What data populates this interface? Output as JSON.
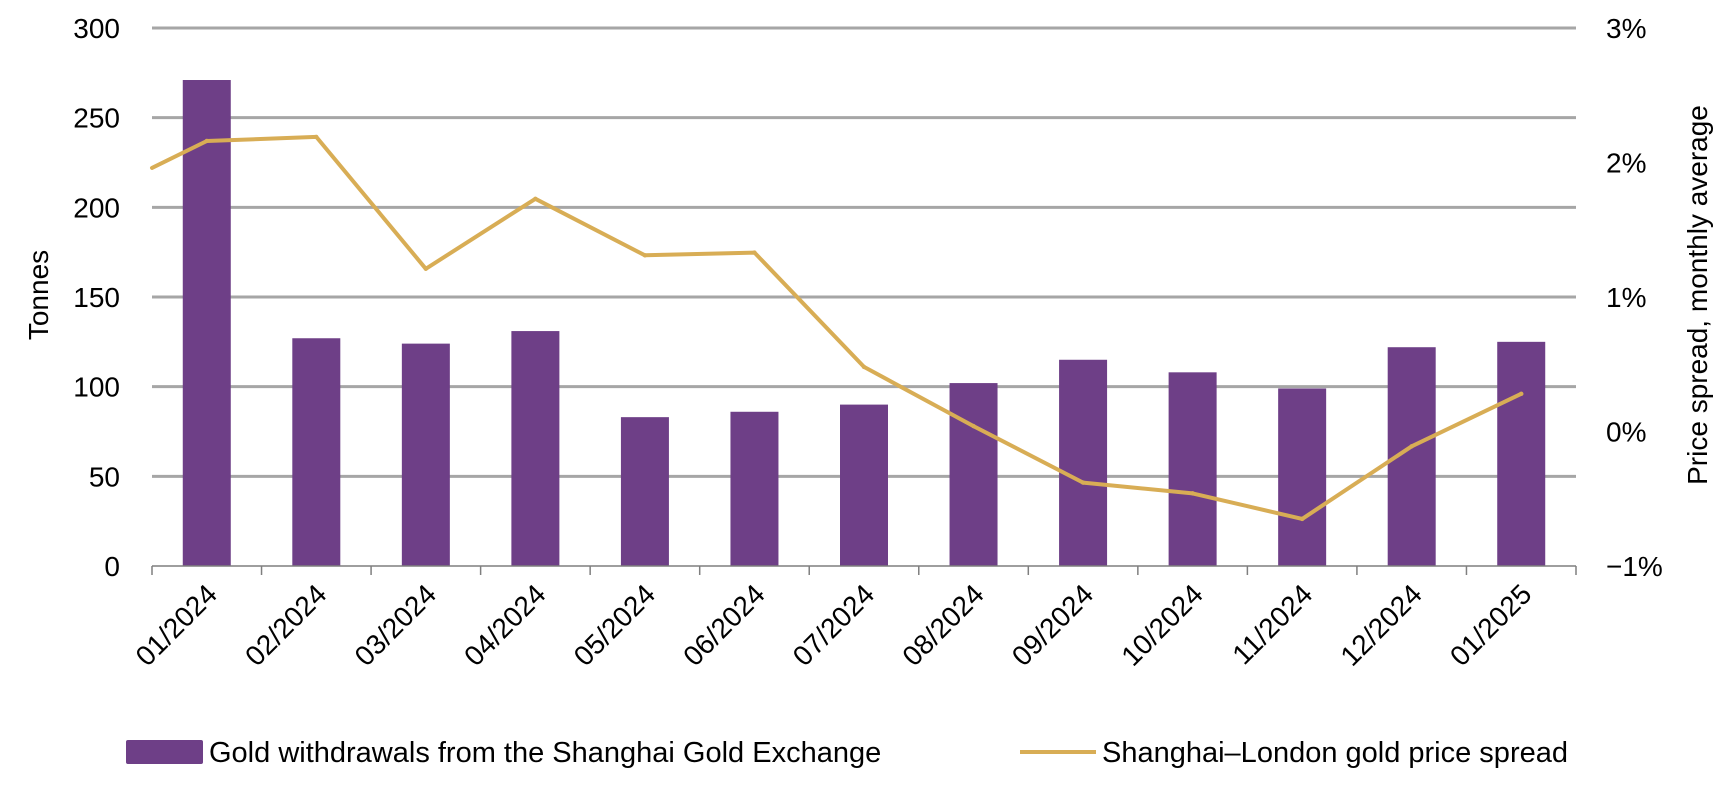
{
  "chart_data": {
    "type": "bar",
    "categories": [
      "01/2024",
      "02/2024",
      "03/2024",
      "04/2024",
      "05/2024",
      "06/2024",
      "07/2024",
      "08/2024",
      "09/2024",
      "10/2024",
      "11/2024",
      "12/2024",
      "01/2025"
    ],
    "series": [
      {
        "name": "Gold withdrawals from the Shanghai Gold Exchange",
        "type": "bar",
        "axis": "left",
        "color": "#6e3f87",
        "values": [
          271,
          127,
          124,
          131,
          83,
          86,
          90,
          102,
          115,
          108,
          99,
          122,
          125
        ]
      },
      {
        "name": "Shanghai–London gold price spread",
        "type": "line",
        "axis": "right",
        "color": "#d8ad55",
        "start_value": 1.96,
        "values": [
          2.16,
          2.19,
          1.21,
          1.73,
          1.31,
          1.33,
          0.48,
          0.04,
          -0.38,
          -0.46,
          -0.65,
          -0.11,
          0.28
        ]
      }
    ],
    "ylabel": "Tonnes",
    "ylim": [
      0,
      300
    ],
    "yticks": [
      "0",
      "50",
      "100",
      "150",
      "200",
      "250",
      "300"
    ],
    "y2label": "Price spread, monthly average",
    "y2lim": [
      -1,
      3
    ],
    "y2ticks": [
      "−1%",
      "0%",
      "1%",
      "2%",
      "3%"
    ],
    "grid": true,
    "legend_position": "bottom"
  }
}
